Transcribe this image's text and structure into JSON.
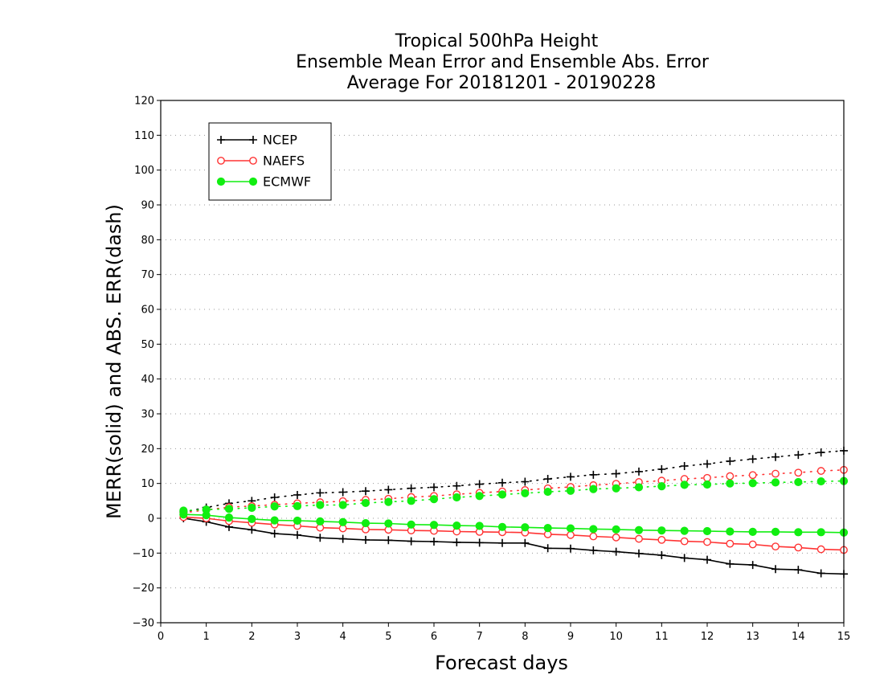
{
  "chart_data": {
    "type": "line",
    "title": [
      "Tropical 500hPa Height",
      "Ensemble Mean Error and Ensemble Abs. Error",
      "Average For 20181201 - 20190228"
    ],
    "xlabel": "Forecast days",
    "ylabel": "MERR(solid) and ABS. ERR(dash)",
    "xlim": [
      0,
      15
    ],
    "ylim": [
      -30,
      120
    ],
    "xticks": [
      0,
      1,
      2,
      3,
      4,
      5,
      6,
      7,
      8,
      9,
      10,
      11,
      12,
      13,
      14,
      15
    ],
    "yticks": [
      -30,
      -20,
      -10,
      0,
      10,
      20,
      30,
      40,
      50,
      60,
      70,
      80,
      90,
      100,
      110,
      120
    ],
    "grid": "horizontal dotted",
    "legend_position": "top-left",
    "x": [
      0.5,
      1,
      1.5,
      2,
      2.5,
      3,
      3.5,
      4,
      4.5,
      5,
      5.5,
      6,
      6.5,
      7,
      7.5,
      8,
      8.5,
      9,
      9.5,
      10,
      10.5,
      11,
      11.5,
      12,
      12.5,
      13,
      13.5,
      14,
      14.5,
      15
    ],
    "series": [
      {
        "name": "NCEP",
        "color": "#000000",
        "marker": "plus",
        "merr": [
          0.0,
          -1.0,
          -2.5,
          -3.3,
          -4.4,
          -4.8,
          -5.6,
          -5.9,
          -6.2,
          -6.3,
          -6.6,
          -6.7,
          -6.9,
          -7.0,
          -7.1,
          -7.1,
          -8.6,
          -8.7,
          -9.2,
          -9.6,
          -10.1,
          -10.6,
          -11.4,
          -11.9,
          -13.1,
          -13.4,
          -14.6,
          -14.8,
          -15.8,
          -16.0
        ],
        "abserr": [
          1.8,
          3.1,
          4.3,
          5.0,
          6.0,
          6.7,
          7.3,
          7.5,
          7.8,
          8.2,
          8.6,
          8.9,
          9.3,
          9.8,
          10.2,
          10.5,
          11.3,
          11.9,
          12.5,
          12.8,
          13.4,
          14.1,
          15.0,
          15.6,
          16.4,
          17.0,
          17.6,
          18.2,
          18.9,
          19.4
        ]
      },
      {
        "name": "NAEFS",
        "color": "#ff3333",
        "marker": "open-circle",
        "merr": [
          0.3,
          0.0,
          -0.8,
          -1.3,
          -1.8,
          -2.2,
          -2.7,
          -2.9,
          -3.2,
          -3.3,
          -3.5,
          -3.6,
          -3.8,
          -3.9,
          -4.0,
          -4.1,
          -4.6,
          -4.8,
          -5.2,
          -5.5,
          -5.9,
          -6.2,
          -6.6,
          -6.8,
          -7.3,
          -7.5,
          -8.1,
          -8.4,
          -8.9,
          -9.1
        ],
        "abserr": [
          1.6,
          2.4,
          3.2,
          3.5,
          3.9,
          4.3,
          4.6,
          4.9,
          5.3,
          5.6,
          6.1,
          6.4,
          6.9,
          7.3,
          7.7,
          8.1,
          8.6,
          9.0,
          9.5,
          9.9,
          10.4,
          10.8,
          11.3,
          11.6,
          12.1,
          12.4,
          12.8,
          13.1,
          13.6,
          13.9
        ]
      },
      {
        "name": "ECMWF",
        "color": "#11ee11",
        "marker": "filled-circle",
        "merr": [
          1.1,
          0.9,
          0.2,
          -0.2,
          -0.6,
          -0.7,
          -0.9,
          -1.1,
          -1.4,
          -1.5,
          -1.8,
          -1.9,
          -2.1,
          -2.2,
          -2.5,
          -2.6,
          -2.8,
          -2.9,
          -3.1,
          -3.2,
          -3.4,
          -3.5,
          -3.6,
          -3.7,
          -3.8,
          -3.9,
          -3.9,
          -4.0,
          -4.0,
          -4.1
        ],
        "abserr": [
          2.2,
          2.5,
          2.7,
          3.0,
          3.4,
          3.5,
          3.8,
          3.8,
          4.4,
          4.7,
          5.0,
          5.5,
          6.0,
          6.4,
          6.8,
          7.2,
          7.6,
          7.9,
          8.4,
          8.6,
          8.9,
          9.2,
          9.6,
          9.7,
          10.0,
          10.1,
          10.3,
          10.4,
          10.6,
          10.7
        ]
      }
    ]
  }
}
